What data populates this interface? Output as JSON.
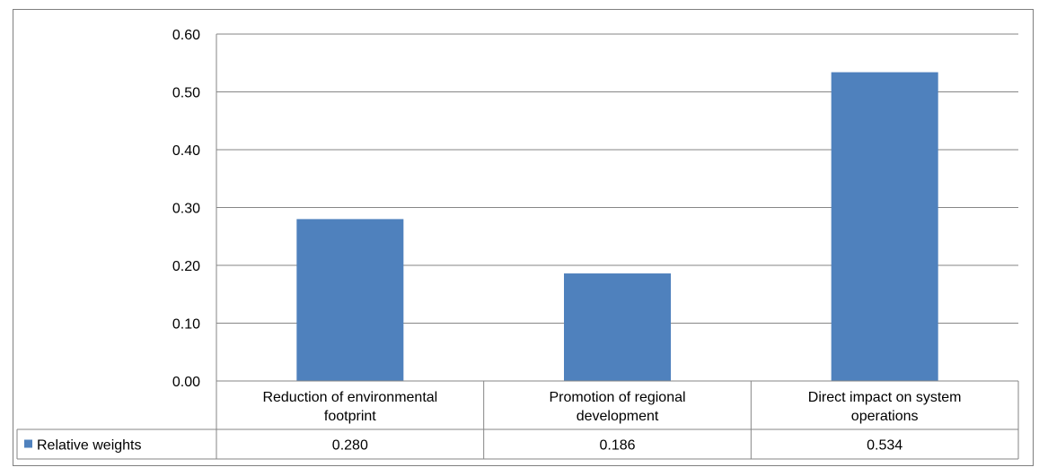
{
  "chart_data": {
    "type": "bar",
    "categories": [
      [
        "Reduction of environmental",
        "footprint"
      ],
      [
        "Promotion of regional",
        "development"
      ],
      [
        "Direct impact on system",
        "operations"
      ]
    ],
    "series": [
      {
        "name": "Relative weights",
        "values": [
          0.28,
          0.186,
          0.534
        ],
        "value_labels": [
          "0.280",
          "0.186",
          "0.534"
        ],
        "color": "#4f81bd"
      }
    ],
    "ylim": [
      0,
      0.6
    ],
    "yticks": [
      "0.00",
      "0.10",
      "0.20",
      "0.30",
      "0.40",
      "0.50",
      "0.60"
    ],
    "grid": true,
    "legend": "data-table",
    "gridline_color": "#868686",
    "axis_color": "#868686"
  }
}
